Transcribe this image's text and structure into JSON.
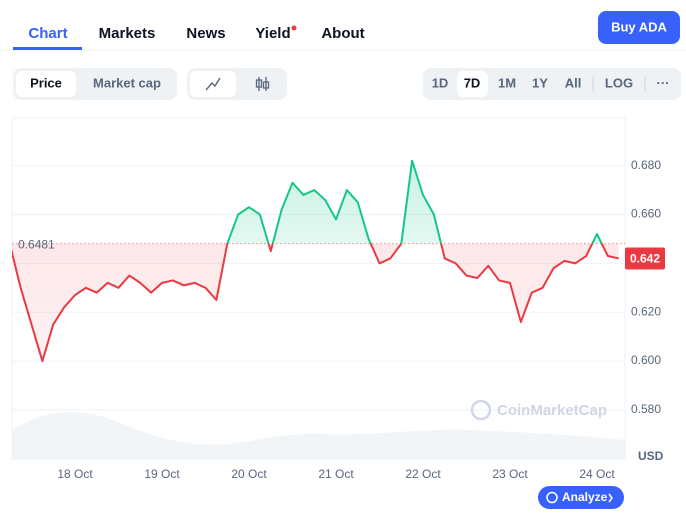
{
  "nav": {
    "tabs": [
      "Chart",
      "Markets",
      "News",
      "Yield",
      "About"
    ],
    "button": "Buy ADA"
  },
  "toolbar": {
    "metrics": [
      "Price",
      "Market cap"
    ],
    "ranges": [
      "1D",
      "7D",
      "1M",
      "1Y",
      "All",
      "LOG",
      "···"
    ]
  },
  "chart_data": {
    "type": "line",
    "categories": [
      null,
      null,
      null,
      null,
      null,
      null,
      "18 Oct",
      null,
      null,
      null,
      null,
      null,
      null,
      null,
      "19 Oct",
      null,
      null,
      null,
      null,
      null,
      null,
      null,
      "20 Oct",
      null,
      null,
      null,
      null,
      null,
      null,
      null,
      "21 Oct",
      null,
      null,
      null,
      null,
      null,
      null,
      null,
      "22 Oct",
      null,
      null,
      null,
      null,
      null,
      null,
      null,
      "23 Oct",
      null,
      null,
      null,
      null,
      null,
      null,
      null,
      "24 Oct",
      null,
      null
    ],
    "values": [
      0.648,
      0.63,
      0.615,
      0.6,
      0.615,
      0.622,
      0.627,
      0.63,
      0.628,
      0.632,
      0.63,
      0.635,
      0.632,
      0.628,
      0.632,
      0.633,
      0.631,
      0.632,
      0.63,
      0.625,
      0.648,
      0.66,
      0.663,
      0.66,
      0.645,
      0.662,
      0.673,
      0.668,
      0.67,
      0.666,
      0.658,
      0.67,
      0.665,
      0.65,
      0.64,
      0.642,
      0.648,
      0.682,
      0.668,
      0.66,
      0.642,
      0.64,
      0.635,
      0.634,
      0.639,
      0.633,
      0.632,
      0.616,
      0.628,
      0.63,
      0.638,
      0.641,
      0.64,
      0.643,
      0.652,
      0.643,
      0.642
    ],
    "color_above": "#16c784",
    "color_below": "#ea3943",
    "reference": 0.6481,
    "current_price": 0.642,
    "ylim": [
      0.5595,
      0.6995
    ],
    "yticks": [
      {
        "value": 0.58,
        "label": "0.580"
      },
      {
        "value": 0.6,
        "label": "0.600"
      },
      {
        "value": 0.62,
        "label": "0.620"
      },
      {
        "value": 0.64,
        "label": "0.640"
      },
      {
        "value": 0.66,
        "label": "0.660"
      },
      {
        "value": 0.68,
        "label": "0.680"
      }
    ],
    "grid": true,
    "unit": "USD",
    "watermark": "CoinMarketCap",
    "action": "Analyze"
  }
}
